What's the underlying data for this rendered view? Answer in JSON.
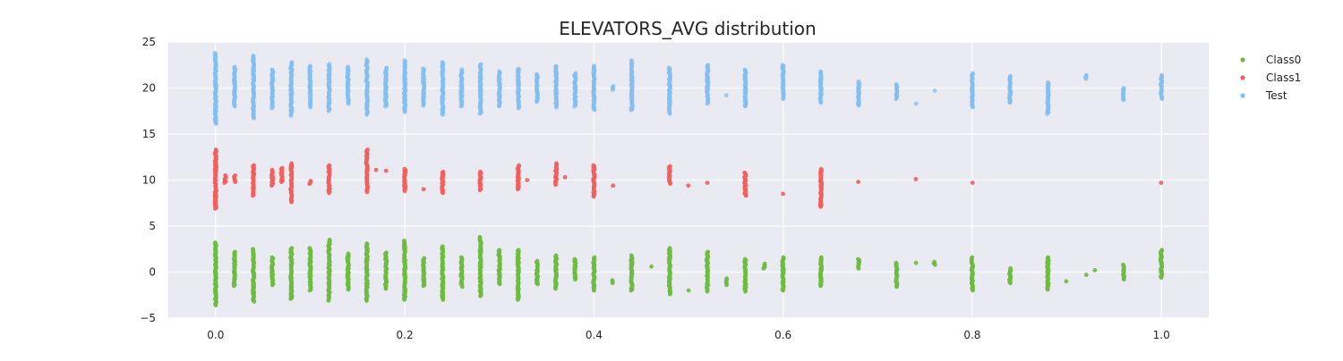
{
  "chart_data": {
    "type": "scatter",
    "title": "ELEVATORS_AVG distribution",
    "xlabel": "",
    "ylabel": "",
    "xlim": [
      -0.05,
      1.05
    ],
    "ylim": [
      -5,
      25
    ],
    "x_ticks": [
      0.0,
      0.2,
      0.4,
      0.6,
      0.8,
      1.0
    ],
    "x_tick_labels": [
      "0.0",
      "0.2",
      "0.4",
      "0.6",
      "0.8",
      "1.0"
    ],
    "y_ticks": [
      -5,
      0,
      5,
      10,
      15,
      20,
      25
    ],
    "y_tick_labels": [
      "−5",
      "0",
      "5",
      "10",
      "15",
      "20",
      "25"
    ],
    "grid": true,
    "background": "#eaeaf2",
    "legend_position": "right",
    "series": [
      {
        "name": "Class0",
        "color": "#6dbb3f",
        "center": 0,
        "groups": [
          {
            "x": 0.0,
            "ymin": -3.6,
            "ymax": 3.2
          },
          {
            "x": 0.02,
            "ymin": -1.5,
            "ymax": 2.2
          },
          {
            "x": 0.04,
            "ymin": -3.2,
            "ymax": 2.5
          },
          {
            "x": 0.06,
            "ymin": -1.4,
            "ymax": 1.6
          },
          {
            "x": 0.08,
            "ymin": -2.9,
            "ymax": 2.6
          },
          {
            "x": 0.1,
            "ymin": -2.0,
            "ymax": 2.6
          },
          {
            "x": 0.12,
            "ymin": -3.1,
            "ymax": 3.5
          },
          {
            "x": 0.14,
            "ymin": -1.9,
            "ymax": 2.0
          },
          {
            "x": 0.16,
            "ymin": -3.1,
            "ymax": 3.1
          },
          {
            "x": 0.18,
            "ymin": -1.8,
            "ymax": 2.1
          },
          {
            "x": 0.2,
            "ymin": -3.0,
            "ymax": 3.4
          },
          {
            "x": 0.22,
            "ymin": -1.5,
            "ymax": 1.5
          },
          {
            "x": 0.24,
            "ymin": -3.0,
            "ymax": 2.8
          },
          {
            "x": 0.26,
            "ymin": -1.6,
            "ymax": 1.6
          },
          {
            "x": 0.28,
            "ymin": -2.6,
            "ymax": 3.8
          },
          {
            "x": 0.3,
            "ymin": -1.3,
            "ymax": 2.4
          },
          {
            "x": 0.32,
            "ymin": -3.0,
            "ymax": 2.4
          },
          {
            "x": 0.34,
            "ymin": -1.3,
            "ymax": 1.2
          },
          {
            "x": 0.36,
            "ymin": -1.8,
            "ymax": 1.8
          },
          {
            "x": 0.38,
            "ymin": -0.8,
            "ymax": 1.4
          },
          {
            "x": 0.4,
            "ymin": -2.0,
            "ymax": 1.6
          },
          {
            "x": 0.42,
            "ymin": -1.2,
            "ymax": -0.9
          },
          {
            "x": 0.44,
            "ymin": -2.0,
            "ymax": 1.8
          },
          {
            "x": 0.46,
            "ymin": 0.6,
            "ymax": 0.6
          },
          {
            "x": 0.48,
            "ymin": -2.4,
            "ymax": 2.6
          },
          {
            "x": 0.5,
            "ymin": -2.0,
            "ymax": -2.0
          },
          {
            "x": 0.52,
            "ymin": -2.1,
            "ymax": 2.2
          },
          {
            "x": 0.54,
            "ymin": -1.4,
            "ymax": -0.7
          },
          {
            "x": 0.56,
            "ymin": -2.1,
            "ymax": 1.4
          },
          {
            "x": 0.58,
            "ymin": 0.4,
            "ymax": 0.9
          },
          {
            "x": 0.6,
            "ymin": -2.0,
            "ymax": 1.6
          },
          {
            "x": 0.64,
            "ymin": -1.5,
            "ymax": 1.6
          },
          {
            "x": 0.68,
            "ymin": 0.4,
            "ymax": 1.4
          },
          {
            "x": 0.72,
            "ymin": -1.6,
            "ymax": 1.0
          },
          {
            "x": 0.74,
            "ymin": 1.0,
            "ymax": 1.0
          },
          {
            "x": 0.76,
            "ymin": 0.8,
            "ymax": 1.1
          },
          {
            "x": 0.8,
            "ymin": -2.0,
            "ymax": 1.6
          },
          {
            "x": 0.84,
            "ymin": -1.2,
            "ymax": 0.4
          },
          {
            "x": 0.88,
            "ymin": -1.9,
            "ymax": 1.6
          },
          {
            "x": 0.9,
            "ymin": -1.0,
            "ymax": -1.0
          },
          {
            "x": 0.92,
            "ymin": -0.3,
            "ymax": -0.3
          },
          {
            "x": 0.93,
            "ymin": 0.2,
            "ymax": 0.2
          },
          {
            "x": 0.96,
            "ymin": -0.8,
            "ymax": 0.8
          },
          {
            "x": 1.0,
            "ymin": -0.6,
            "ymax": 2.4
          }
        ]
      },
      {
        "name": "Class1",
        "color": "#f25f5c",
        "center": 10,
        "groups": [
          {
            "x": 0.0,
            "ymin": 6.9,
            "ymax": 13.3
          },
          {
            "x": 0.01,
            "ymin": 9.7,
            "ymax": 10.5
          },
          {
            "x": 0.02,
            "ymin": 9.8,
            "ymax": 10.5
          },
          {
            "x": 0.04,
            "ymin": 8.3,
            "ymax": 11.6
          },
          {
            "x": 0.06,
            "ymin": 9.4,
            "ymax": 11.1
          },
          {
            "x": 0.07,
            "ymin": 9.8,
            "ymax": 11.3
          },
          {
            "x": 0.08,
            "ymin": 7.6,
            "ymax": 11.8
          },
          {
            "x": 0.1,
            "ymin": 9.6,
            "ymax": 9.9
          },
          {
            "x": 0.12,
            "ymin": 8.6,
            "ymax": 11.6
          },
          {
            "x": 0.16,
            "ymin": 8.7,
            "ymax": 13.3
          },
          {
            "x": 0.17,
            "ymin": 11.1,
            "ymax": 11.1
          },
          {
            "x": 0.18,
            "ymin": 11.0,
            "ymax": 11.0
          },
          {
            "x": 0.2,
            "ymin": 8.8,
            "ymax": 11.2
          },
          {
            "x": 0.22,
            "ymin": 9.0,
            "ymax": 9.0
          },
          {
            "x": 0.24,
            "ymin": 8.6,
            "ymax": 10.9
          },
          {
            "x": 0.28,
            "ymin": 8.9,
            "ymax": 10.9
          },
          {
            "x": 0.32,
            "ymin": 9.0,
            "ymax": 11.6
          },
          {
            "x": 0.33,
            "ymin": 10.0,
            "ymax": 10.0
          },
          {
            "x": 0.36,
            "ymin": 9.5,
            "ymax": 11.8
          },
          {
            "x": 0.37,
            "ymin": 10.3,
            "ymax": 10.3
          },
          {
            "x": 0.4,
            "ymin": 8.2,
            "ymax": 11.6
          },
          {
            "x": 0.42,
            "ymin": 9.4,
            "ymax": 9.4
          },
          {
            "x": 0.48,
            "ymin": 9.6,
            "ymax": 11.5
          },
          {
            "x": 0.5,
            "ymin": 9.4,
            "ymax": 9.4
          },
          {
            "x": 0.52,
            "ymin": 9.7,
            "ymax": 9.7
          },
          {
            "x": 0.56,
            "ymin": 8.3,
            "ymax": 10.8
          },
          {
            "x": 0.6,
            "ymin": 8.5,
            "ymax": 8.5
          },
          {
            "x": 0.64,
            "ymin": 7.1,
            "ymax": 11.2
          },
          {
            "x": 0.68,
            "ymin": 9.8,
            "ymax": 9.8
          },
          {
            "x": 0.74,
            "ymin": 10.1,
            "ymax": 10.1
          },
          {
            "x": 0.8,
            "ymin": 9.7,
            "ymax": 9.7
          },
          {
            "x": 1.0,
            "ymin": 9.7,
            "ymax": 9.7
          }
        ]
      },
      {
        "name": "Test",
        "color": "#82bdf0",
        "center": 20,
        "groups": [
          {
            "x": 0.0,
            "ymin": 16.1,
            "ymax": 23.8
          },
          {
            "x": 0.02,
            "ymin": 18.0,
            "ymax": 22.3
          },
          {
            "x": 0.04,
            "ymin": 16.7,
            "ymax": 23.5
          },
          {
            "x": 0.06,
            "ymin": 17.8,
            "ymax": 22.0
          },
          {
            "x": 0.08,
            "ymin": 17.0,
            "ymax": 22.8
          },
          {
            "x": 0.1,
            "ymin": 17.9,
            "ymax": 22.4
          },
          {
            "x": 0.12,
            "ymin": 17.5,
            "ymax": 22.6
          },
          {
            "x": 0.14,
            "ymin": 18.3,
            "ymax": 22.3
          },
          {
            "x": 0.16,
            "ymin": 17.1,
            "ymax": 23.1
          },
          {
            "x": 0.18,
            "ymin": 18.0,
            "ymax": 22.2
          },
          {
            "x": 0.2,
            "ymin": 17.4,
            "ymax": 23.0
          },
          {
            "x": 0.22,
            "ymin": 18.1,
            "ymax": 22.1
          },
          {
            "x": 0.24,
            "ymin": 17.1,
            "ymax": 22.8
          },
          {
            "x": 0.26,
            "ymin": 18.0,
            "ymax": 22.0
          },
          {
            "x": 0.28,
            "ymin": 17.2,
            "ymax": 22.6
          },
          {
            "x": 0.3,
            "ymin": 18.0,
            "ymax": 21.8
          },
          {
            "x": 0.32,
            "ymin": 17.8,
            "ymax": 22.1
          },
          {
            "x": 0.34,
            "ymin": 18.5,
            "ymax": 21.5
          },
          {
            "x": 0.36,
            "ymin": 17.9,
            "ymax": 22.4
          },
          {
            "x": 0.38,
            "ymin": 18.0,
            "ymax": 21.6
          },
          {
            "x": 0.4,
            "ymin": 17.6,
            "ymax": 22.4
          },
          {
            "x": 0.42,
            "ymin": 19.8,
            "ymax": 20.2
          },
          {
            "x": 0.44,
            "ymin": 17.6,
            "ymax": 23.0
          },
          {
            "x": 0.48,
            "ymin": 17.2,
            "ymax": 22.2
          },
          {
            "x": 0.52,
            "ymin": 18.3,
            "ymax": 22.5
          },
          {
            "x": 0.54,
            "ymin": 19.2,
            "ymax": 19.2
          },
          {
            "x": 0.56,
            "ymin": 18.0,
            "ymax": 22.0
          },
          {
            "x": 0.6,
            "ymin": 18.8,
            "ymax": 22.5
          },
          {
            "x": 0.64,
            "ymin": 18.4,
            "ymax": 21.8
          },
          {
            "x": 0.68,
            "ymin": 18.1,
            "ymax": 20.7
          },
          {
            "x": 0.72,
            "ymin": 18.8,
            "ymax": 20.4
          },
          {
            "x": 0.74,
            "ymin": 18.3,
            "ymax": 18.3
          },
          {
            "x": 0.76,
            "ymin": 19.7,
            "ymax": 19.7
          },
          {
            "x": 0.8,
            "ymin": 17.9,
            "ymax": 21.6
          },
          {
            "x": 0.84,
            "ymin": 18.4,
            "ymax": 21.3
          },
          {
            "x": 0.88,
            "ymin": 17.2,
            "ymax": 20.6
          },
          {
            "x": 0.92,
            "ymin": 21.0,
            "ymax": 21.4
          },
          {
            "x": 0.96,
            "ymin": 18.7,
            "ymax": 20.0
          },
          {
            "x": 1.0,
            "ymin": 18.8,
            "ymax": 21.4
          }
        ]
      }
    ]
  }
}
